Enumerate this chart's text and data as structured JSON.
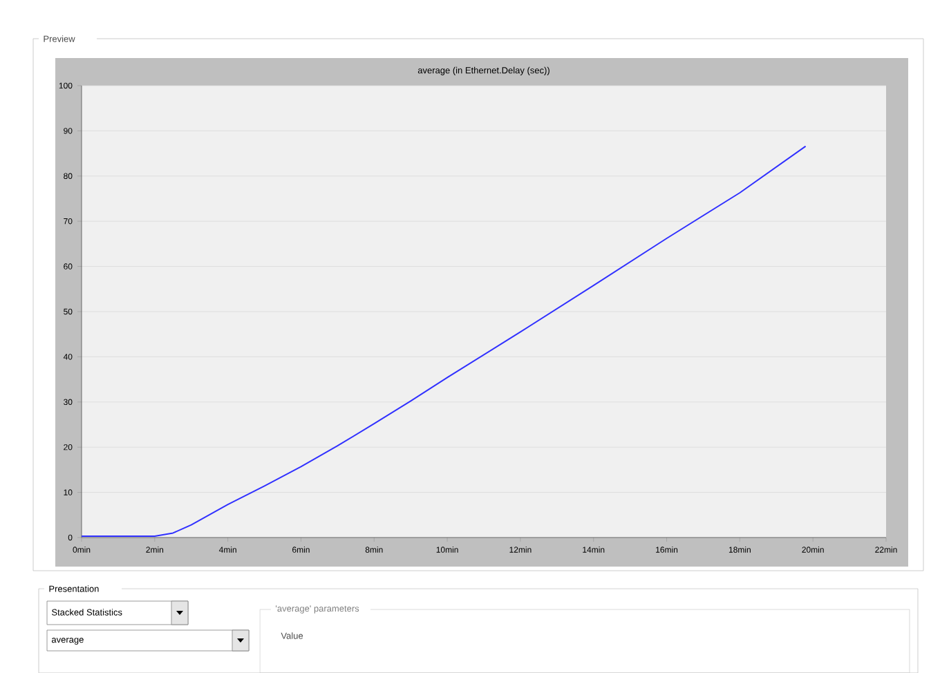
{
  "chart_data": {
    "type": "line",
    "title": "average (in Ethernet.Delay (sec))",
    "x": [
      0,
      1,
      2,
      2.5,
      3,
      4,
      5,
      6,
      7,
      8,
      9,
      10,
      12,
      14,
      16,
      18,
      19.8
    ],
    "series": [
      {
        "color": "#3030ff",
        "values": [
          0.3,
          0.3,
          0.3,
          1,
          2.8,
          7.3,
          11.4,
          15.7,
          20.3,
          25.2,
          30.2,
          35.4,
          45.5,
          55.8,
          66.2,
          76.3,
          86.6
        ]
      }
    ],
    "xlim": [
      0,
      22
    ],
    "ylim": [
      0,
      100
    ],
    "xticks": [
      {
        "value": 0,
        "label": "0min"
      },
      {
        "value": 2,
        "label": "2min"
      },
      {
        "value": 4,
        "label": "4min"
      },
      {
        "value": 6,
        "label": "6min"
      },
      {
        "value": 8,
        "label": "8min"
      },
      {
        "value": 10,
        "label": "10min"
      },
      {
        "value": 12,
        "label": "12min"
      },
      {
        "value": 14,
        "label": "14min"
      },
      {
        "value": 16,
        "label": "16min"
      },
      {
        "value": 18,
        "label": "18min"
      },
      {
        "value": 20,
        "label": "20min"
      },
      {
        "value": 22,
        "label": "22min"
      }
    ],
    "yticks": [
      0,
      10,
      20,
      30,
      40,
      50,
      60,
      70,
      80,
      90,
      100
    ],
    "grid": "y",
    "line_style": "solid",
    "annotations": [
      "Preview",
      "Presentation",
      "Stacked Statistics",
      "average",
      "'average' parameters",
      "Value"
    ]
  }
}
